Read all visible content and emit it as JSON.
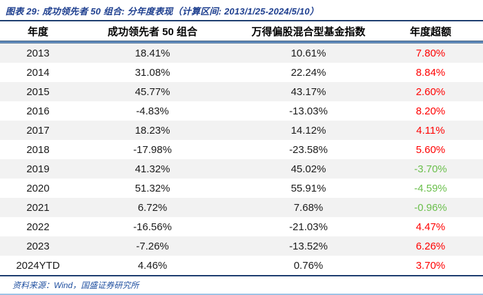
{
  "title": "图表 29: 成功领先者 50 组合: 分年度表现（计算区间: 2013/1/25-2024/5/10）",
  "source": "资料来源：Wind，国盛证券研究所",
  "table": {
    "headers": [
      "年度",
      "成功领先者 50 组合",
      "万得偏股混合型基金指数",
      "年度超额"
    ],
    "rows": [
      {
        "year": "2013",
        "portfolio": "18.41%",
        "index": "10.61%",
        "excess": "7.80%"
      },
      {
        "year": "2014",
        "portfolio": "31.08%",
        "index": "22.24%",
        "excess": "8.84%"
      },
      {
        "year": "2015",
        "portfolio": "45.77%",
        "index": "43.17%",
        "excess": "2.60%"
      },
      {
        "year": "2016",
        "portfolio": "-4.83%",
        "index": "-13.03%",
        "excess": "8.20%"
      },
      {
        "year": "2017",
        "portfolio": "18.23%",
        "index": "14.12%",
        "excess": "4.11%"
      },
      {
        "year": "2018",
        "portfolio": "-17.98%",
        "index": "-23.58%",
        "excess": "5.60%"
      },
      {
        "year": "2019",
        "portfolio": "41.32%",
        "index": "45.02%",
        "excess": "-3.70%"
      },
      {
        "year": "2020",
        "portfolio": "51.32%",
        "index": "55.91%",
        "excess": "-4.59%"
      },
      {
        "year": "2021",
        "portfolio": "6.72%",
        "index": "7.68%",
        "excess": "-0.96%"
      },
      {
        "year": "2022",
        "portfolio": "-16.56%",
        "index": "-21.03%",
        "excess": "4.47%"
      },
      {
        "year": "2023",
        "portfolio": "-7.26%",
        "index": "-13.52%",
        "excess": "6.26%"
      },
      {
        "year": "2024YTD",
        "portfolio": "4.46%",
        "index": "0.76%",
        "excess": "3.70%"
      }
    ]
  },
  "colors": {
    "title_blue": "#1e3f8f",
    "rule_dark_navy": "#1c3c6e",
    "rule_header_blue": "#6b96c9",
    "rule_light_blue": "#9cc3e5",
    "row_stripe": "#f2f2f2",
    "excess_positive_red": "#ff0000",
    "excess_negative_green": "#6abf4b",
    "source_blue": "#2050a0"
  },
  "chart_data": {
    "type": "table",
    "title": "图表 29: 成功领先者 50 组合: 分年度表现（计算区间: 2013/1/25-2024/5/10）",
    "columns": [
      "年度",
      "成功领先者 50 组合",
      "万得偏股混合型基金指数",
      "年度超额"
    ],
    "units": "percent",
    "rows": [
      [
        "2013",
        18.41,
        10.61,
        7.8
      ],
      [
        "2014",
        31.08,
        22.24,
        8.84
      ],
      [
        "2015",
        45.77,
        43.17,
        2.6
      ],
      [
        "2016",
        -4.83,
        -13.03,
        8.2
      ],
      [
        "2017",
        18.23,
        14.12,
        4.11
      ],
      [
        "2018",
        -17.98,
        -23.58,
        5.6
      ],
      [
        "2019",
        41.32,
        45.02,
        -3.7
      ],
      [
        "2020",
        51.32,
        55.91,
        -4.59
      ],
      [
        "2021",
        6.72,
        7.68,
        -0.96
      ],
      [
        "2022",
        -16.56,
        -21.03,
        4.47
      ],
      [
        "2023",
        -7.26,
        -13.52,
        6.26
      ],
      [
        "2024YTD",
        4.46,
        0.76,
        3.7
      ]
    ],
    "source": "资料来源：Wind，国盛证券研究所"
  }
}
